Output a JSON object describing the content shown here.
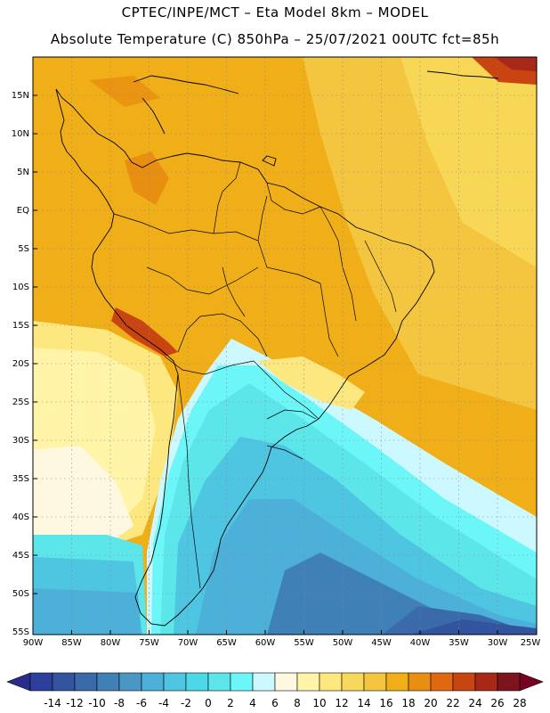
{
  "header": {
    "line1": "CPTEC/INPE/MCT –  Eta Model 8km – MODEL",
    "line2": "Absolute Temperature (C) 850hPa – 25/07/2021 00UTC fct=85h"
  },
  "axes": {
    "lat_labels": [
      "15N",
      "10N",
      "5N",
      "EQ",
      "5S",
      "10S",
      "15S",
      "20S",
      "25S",
      "30S",
      "35S",
      "40S",
      "45S",
      "50S",
      "55S"
    ],
    "lon_labels": [
      "90W",
      "85W",
      "80W",
      "75W",
      "70W",
      "65W",
      "60W",
      "55W",
      "50W",
      "45W",
      "40W",
      "35W",
      "30W",
      "25W"
    ]
  },
  "colorbar": {
    "labels": [
      "-14",
      "-12",
      "-10",
      "-8",
      "-6",
      "-4",
      "-2",
      "0",
      "2",
      "4",
      "6",
      "8",
      "10",
      "12",
      "14",
      "16",
      "18",
      "20",
      "22",
      "24",
      "26",
      "28"
    ],
    "colors": [
      "#2d3f9c",
      "#33559f",
      "#3a6aaa",
      "#3f80b7",
      "#4a97c6",
      "#4cb0d8",
      "#4ec6e2",
      "#4cd8e8",
      "#5ce6ea",
      "#6cf6f8",
      "#ccf8ff",
      "#fff8e0",
      "#fff4a8",
      "#fde880",
      "#f8d85a",
      "#f4c640",
      "#f0ae18",
      "#e88e10",
      "#e06810",
      "#c84410",
      "#a82818",
      "#7c141e"
    ],
    "arrow_left_color": "#2a2c8a",
    "arrow_right_color": "#780020"
  }
}
